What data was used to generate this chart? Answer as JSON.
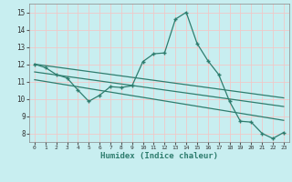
{
  "xlabel": "Humidex (Indice chaleur)",
  "bg_color": "#c8eef0",
  "grid_color": "#f0c8c8",
  "line_color": "#2e7d6e",
  "xlim": [
    -0.5,
    23.5
  ],
  "ylim": [
    7.5,
    15.5
  ],
  "xticks": [
    0,
    1,
    2,
    3,
    4,
    5,
    6,
    7,
    8,
    9,
    10,
    11,
    12,
    13,
    14,
    15,
    16,
    17,
    18,
    19,
    20,
    21,
    22,
    23
  ],
  "yticks": [
    8,
    9,
    10,
    11,
    12,
    13,
    14,
    15
  ],
  "series1_x": [
    0,
    1,
    2,
    3,
    4,
    5,
    6,
    7,
    8,
    9,
    10,
    11,
    12,
    13,
    14,
    15,
    16,
    17,
    18,
    19,
    20,
    21,
    22,
    23
  ],
  "series1_y": [
    12.0,
    11.8,
    11.4,
    11.2,
    10.5,
    9.85,
    10.2,
    10.7,
    10.65,
    10.75,
    12.15,
    12.6,
    12.65,
    14.6,
    15.0,
    13.2,
    12.2,
    11.4,
    9.85,
    8.7,
    8.65,
    8.0,
    7.7,
    8.05
  ],
  "series2_x": [
    0,
    23
  ],
  "series2_y": [
    12.0,
    10.05
  ],
  "series3_x": [
    0,
    23
  ],
  "series3_y": [
    11.55,
    9.55
  ],
  "series4_x": [
    0,
    23
  ],
  "series4_y": [
    11.1,
    8.75
  ]
}
